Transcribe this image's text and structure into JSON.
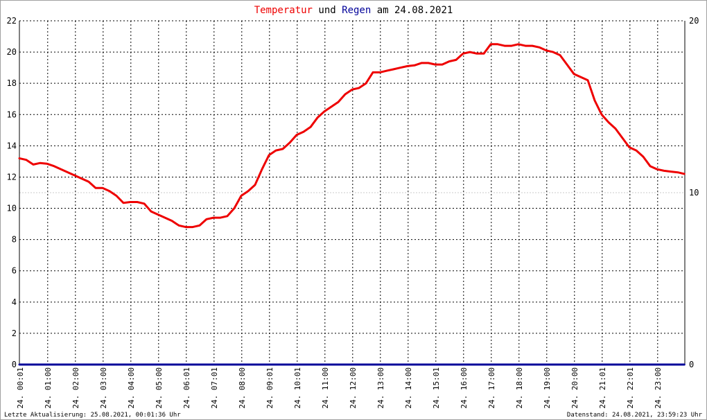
{
  "title": {
    "part1": "Temperatur",
    "part2": " und ",
    "part3": "Regen",
    "part4": " am 24.08.2021"
  },
  "colors": {
    "temperature": "#ee0000",
    "rain": "#000099",
    "grid": "#000000",
    "text": "#000000"
  },
  "footer": {
    "left": "Letzte Aktualisierung: 25.08.2021, 00:01:36 Uhr",
    "right": "Datenstand: 24.08.2021, 23:59:23 Uhr"
  },
  "chart_data": {
    "type": "line",
    "grid": true,
    "y_left": {
      "min": 0,
      "max": 22,
      "ticks": [
        0,
        2,
        4,
        6,
        8,
        10,
        12,
        14,
        16,
        18,
        20,
        22
      ]
    },
    "y_right": {
      "min": 0,
      "max": 20,
      "ticks": [
        0,
        10,
        20
      ]
    },
    "x_range_hours": [
      0,
      24
    ],
    "x_tick_labels": [
      "24. 00:01",
      "24. 01:00",
      "24. 02:00",
      "24. 03:00",
      "24. 04:00",
      "24. 05:00",
      "24. 06:01",
      "24. 07:01",
      "24. 08:00",
      "24. 09:01",
      "24. 10:01",
      "24. 11:00",
      "24. 12:00",
      "24. 13:00",
      "24. 14:00",
      "24. 15:01",
      "24. 16:00",
      "24. 17:00",
      "24. 18:00",
      "24. 19:00",
      "24. 20:00",
      "24. 21:01",
      "24. 22:01",
      "24. 23:00"
    ],
    "series": [
      {
        "name": "Temperatur",
        "axis": "left",
        "color": "#ee0000",
        "x": [
          "00:00",
          "00:15",
          "00:30",
          "00:45",
          "01:00",
          "01:15",
          "01:30",
          "01:45",
          "02:00",
          "02:15",
          "02:30",
          "02:45",
          "03:00",
          "03:15",
          "03:30",
          "03:45",
          "04:00",
          "04:15",
          "04:30",
          "04:45",
          "05:00",
          "05:15",
          "05:30",
          "05:45",
          "06:00",
          "06:15",
          "06:30",
          "06:45",
          "07:00",
          "07:15",
          "07:30",
          "07:45",
          "08:00",
          "08:15",
          "08:30",
          "08:45",
          "09:00",
          "09:15",
          "09:30",
          "09:45",
          "10:00",
          "10:15",
          "10:30",
          "10:45",
          "11:00",
          "11:15",
          "11:30",
          "11:45",
          "12:00",
          "12:15",
          "12:30",
          "12:45",
          "13:00",
          "13:15",
          "13:30",
          "13:45",
          "14:00",
          "14:15",
          "14:30",
          "14:45",
          "15:00",
          "15:15",
          "15:30",
          "15:45",
          "16:00",
          "16:15",
          "16:30",
          "16:45",
          "17:00",
          "17:15",
          "17:30",
          "17:45",
          "18:00",
          "18:15",
          "18:30",
          "18:45",
          "19:00",
          "19:15",
          "19:30",
          "19:45",
          "20:00",
          "20:15",
          "20:30",
          "20:45",
          "21:00",
          "21:15",
          "21:30",
          "21:45",
          "22:00",
          "22:15",
          "22:30",
          "22:45",
          "23:00",
          "23:15",
          "23:30",
          "23:45",
          "23:59"
        ],
        "values": [
          13.2,
          13.1,
          12.8,
          12.9,
          12.85,
          12.7,
          12.5,
          12.3,
          12.1,
          11.9,
          11.7,
          11.3,
          11.3,
          11.1,
          10.8,
          10.35,
          10.4,
          10.4,
          10.3,
          9.8,
          9.6,
          9.4,
          9.2,
          8.9,
          8.8,
          8.8,
          8.9,
          9.3,
          9.4,
          9.4,
          9.5,
          10.0,
          10.8,
          11.1,
          11.5,
          12.5,
          13.4,
          13.7,
          13.8,
          14.2,
          14.7,
          14.9,
          15.2,
          15.8,
          16.2,
          16.5,
          16.8,
          17.3,
          17.6,
          17.7,
          18.0,
          18.7,
          18.7,
          18.8,
          18.9,
          19.0,
          19.1,
          19.15,
          19.3,
          19.3,
          19.2,
          19.2,
          19.4,
          19.5,
          19.9,
          20.0,
          19.9,
          19.9,
          20.5,
          20.5,
          20.4,
          20.4,
          20.5,
          20.4,
          20.4,
          20.3,
          20.1,
          20.0,
          19.8,
          19.2,
          18.6,
          18.4,
          18.2,
          16.9,
          16.0,
          15.5,
          15.1,
          14.5,
          13.9,
          13.7,
          13.3,
          12.7,
          12.5,
          12.4,
          12.35,
          12.3,
          12.2
        ]
      },
      {
        "name": "Regen",
        "axis": "right",
        "color": "#000099",
        "x": [
          "00:00",
          "23:59"
        ],
        "values": [
          0,
          0
        ]
      }
    ]
  }
}
